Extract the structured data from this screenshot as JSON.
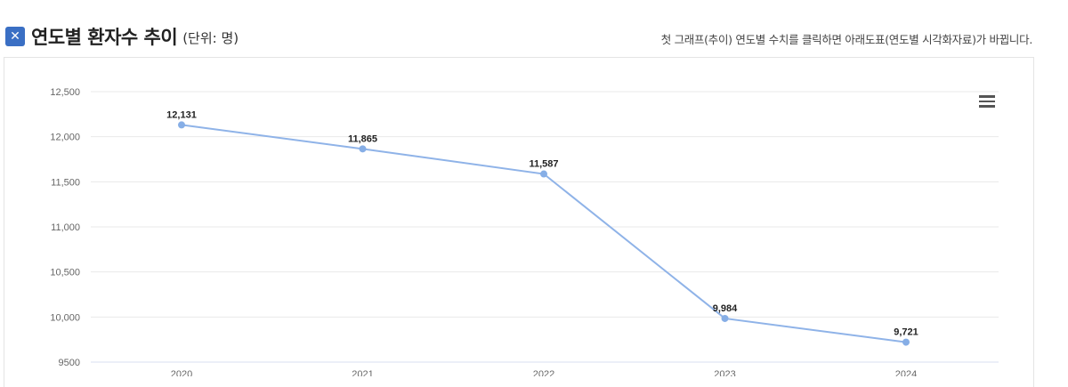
{
  "header": {
    "icon": "x-box-icon",
    "icon_glyph": "⨯",
    "title": "연도별 환자수 추이",
    "unit": "(단위: 명)",
    "hint": "첫 그래프(추이) 연도별 수치를 클릭하면 아래도표(연도별 시각화자료)가 바뀝니다."
  },
  "chart_menu": {
    "icon": "hamburger-menu-icon"
  },
  "colors": {
    "line": "#8fb3e8",
    "point": "#86aee6",
    "grid": "#eaeaea",
    "accent": "#3a6fc4"
  },
  "chart_data": {
    "type": "line",
    "title": "연도별 환자수 추이",
    "subtitle": "(단위: 명)",
    "xlabel": "",
    "ylabel": "",
    "categories": [
      "2020",
      "2021",
      "2022",
      "2023",
      "2024"
    ],
    "series": [
      {
        "name": "환자수",
        "values": [
          12131,
          11865,
          11587,
          9984,
          9721
        ]
      }
    ],
    "data_labels": [
      "12,131",
      "11,865",
      "11,587",
      "9,984",
      "9,721"
    ],
    "y_ticks": [
      9500,
      10000,
      10500,
      11000,
      11500,
      12000,
      12500
    ],
    "y_tick_labels": [
      "9500",
      "10,000",
      "10,500",
      "11,000",
      "11,500",
      "12,000",
      "12,500"
    ],
    "ylim": [
      9500,
      12500
    ],
    "grid": true,
    "legend": "none"
  }
}
